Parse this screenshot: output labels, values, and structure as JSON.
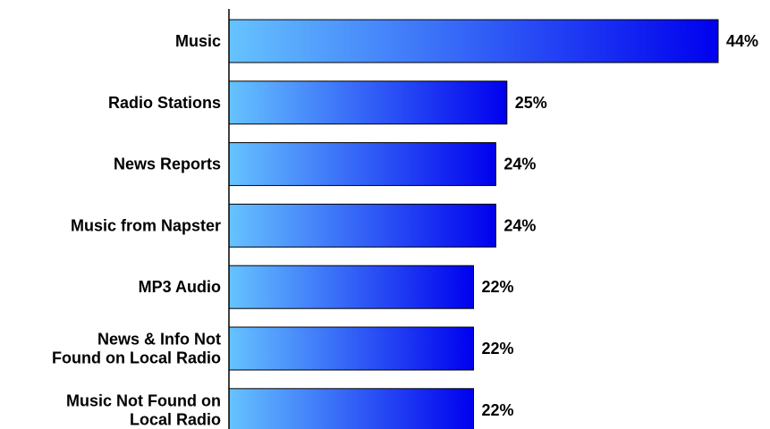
{
  "chart_data": {
    "type": "bar",
    "orientation": "horizontal",
    "categories": [
      "Music",
      "Radio Stations",
      "News Reports",
      "Music from Napster",
      "MP3 Audio",
      "News & Info Not Found on Local Radio",
      "Music Not Found on Local Radio"
    ],
    "category_lines": [
      [
        "Music"
      ],
      [
        "Radio Stations"
      ],
      [
        "News Reports"
      ],
      [
        "Music from Napster"
      ],
      [
        "MP3 Audio"
      ],
      [
        "News & Info Not",
        "Found on Local Radio"
      ],
      [
        "Music Not Found on",
        "Local Radio"
      ]
    ],
    "values": [
      44,
      25,
      24,
      24,
      22,
      22,
      22
    ],
    "value_labels": [
      "44%",
      "25%",
      "24%",
      "24%",
      "22%",
      "22%",
      "22%"
    ],
    "unit": "%",
    "xlim": [
      0,
      44
    ],
    "grid": false,
    "legend": "none",
    "colors": {
      "bar_gradient_start": "#66c3ff",
      "bar_gradient_end": "#0000ee",
      "bar_stroke": "#000000",
      "axis": "#000000",
      "text": "#000000"
    }
  }
}
